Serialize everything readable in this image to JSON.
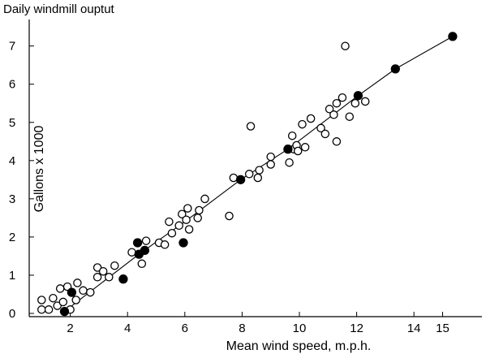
{
  "chart_data": {
    "type": "scatter",
    "title": "Daily windmill ouptut",
    "xlabel": "Mean wind speed, m.p.h.",
    "ylabel": "Gallons x 1000",
    "xlim": [
      0.5,
      15.5
    ],
    "ylim": [
      0,
      7.5
    ],
    "xticks": [
      2,
      4,
      6,
      8,
      10,
      12,
      14,
      15
    ],
    "yticks": [
      0,
      1,
      2,
      3,
      4,
      5,
      6,
      7
    ],
    "grid": false,
    "series": [
      {
        "marker": "open-circle",
        "points": [
          [
            1.0,
            0.35
          ],
          [
            1.0,
            0.1
          ],
          [
            1.25,
            0.1
          ],
          [
            1.4,
            0.4
          ],
          [
            1.55,
            0.2
          ],
          [
            1.65,
            0.65
          ],
          [
            1.75,
            0.3
          ],
          [
            1.9,
            0.7
          ],
          [
            2.0,
            0.1
          ],
          [
            2.2,
            0.35
          ],
          [
            2.25,
            0.8
          ],
          [
            2.45,
            0.6
          ],
          [
            2.7,
            0.55
          ],
          [
            2.95,
            0.95
          ],
          [
            2.95,
            1.2
          ],
          [
            3.15,
            1.1
          ],
          [
            3.35,
            0.95
          ],
          [
            3.55,
            1.25
          ],
          [
            4.15,
            1.6
          ],
          [
            4.5,
            1.3
          ],
          [
            4.65,
            1.9
          ],
          [
            5.1,
            1.85
          ],
          [
            5.3,
            1.8
          ],
          [
            5.45,
            2.4
          ],
          [
            5.55,
            2.1
          ],
          [
            5.8,
            2.3
          ],
          [
            5.9,
            2.6
          ],
          [
            6.05,
            2.45
          ],
          [
            6.1,
            2.75
          ],
          [
            6.15,
            2.2
          ],
          [
            6.45,
            2.5
          ],
          [
            6.5,
            2.7
          ],
          [
            6.7,
            3.0
          ],
          [
            7.55,
            2.55
          ],
          [
            7.7,
            3.55
          ],
          [
            8.25,
            3.65
          ],
          [
            8.3,
            4.9
          ],
          [
            8.55,
            3.55
          ],
          [
            8.6,
            3.75
          ],
          [
            9.0,
            3.9
          ],
          [
            9.0,
            4.1
          ],
          [
            9.65,
            3.95
          ],
          [
            9.75,
            4.65
          ],
          [
            9.8,
            4.3
          ],
          [
            9.9,
            4.4
          ],
          [
            9.95,
            4.25
          ],
          [
            10.1,
            4.95
          ],
          [
            10.2,
            4.35
          ],
          [
            10.4,
            5.1
          ],
          [
            10.75,
            4.85
          ],
          [
            10.9,
            4.7
          ],
          [
            11.05,
            5.35
          ],
          [
            11.2,
            5.2
          ],
          [
            11.3,
            4.5
          ],
          [
            11.3,
            5.5
          ],
          [
            11.5,
            5.65
          ],
          [
            11.6,
            7.0
          ],
          [
            11.75,
            5.15
          ],
          [
            11.95,
            5.5
          ],
          [
            12.3,
            5.55
          ]
        ]
      },
      {
        "marker": "filled-circle",
        "points": [
          [
            1.8,
            0.05
          ],
          [
            2.05,
            0.55
          ],
          [
            3.85,
            0.9
          ],
          [
            4.35,
            1.85
          ],
          [
            4.4,
            1.55
          ],
          [
            4.6,
            1.65
          ],
          [
            5.95,
            1.85
          ],
          [
            7.95,
            3.5
          ],
          [
            9.6,
            4.3
          ],
          [
            12.05,
            5.7
          ],
          [
            13.35,
            6.4
          ],
          [
            15.35,
            7.25
          ]
        ]
      }
    ],
    "fit_line": [
      [
        1.8,
        0.05
      ],
      [
        4.4,
        1.55
      ],
      [
        6.0,
        2.4
      ],
      [
        7.95,
        3.5
      ],
      [
        9.6,
        4.3
      ],
      [
        12.05,
        5.7
      ],
      [
        13.35,
        6.4
      ],
      [
        15.35,
        7.25
      ]
    ]
  }
}
